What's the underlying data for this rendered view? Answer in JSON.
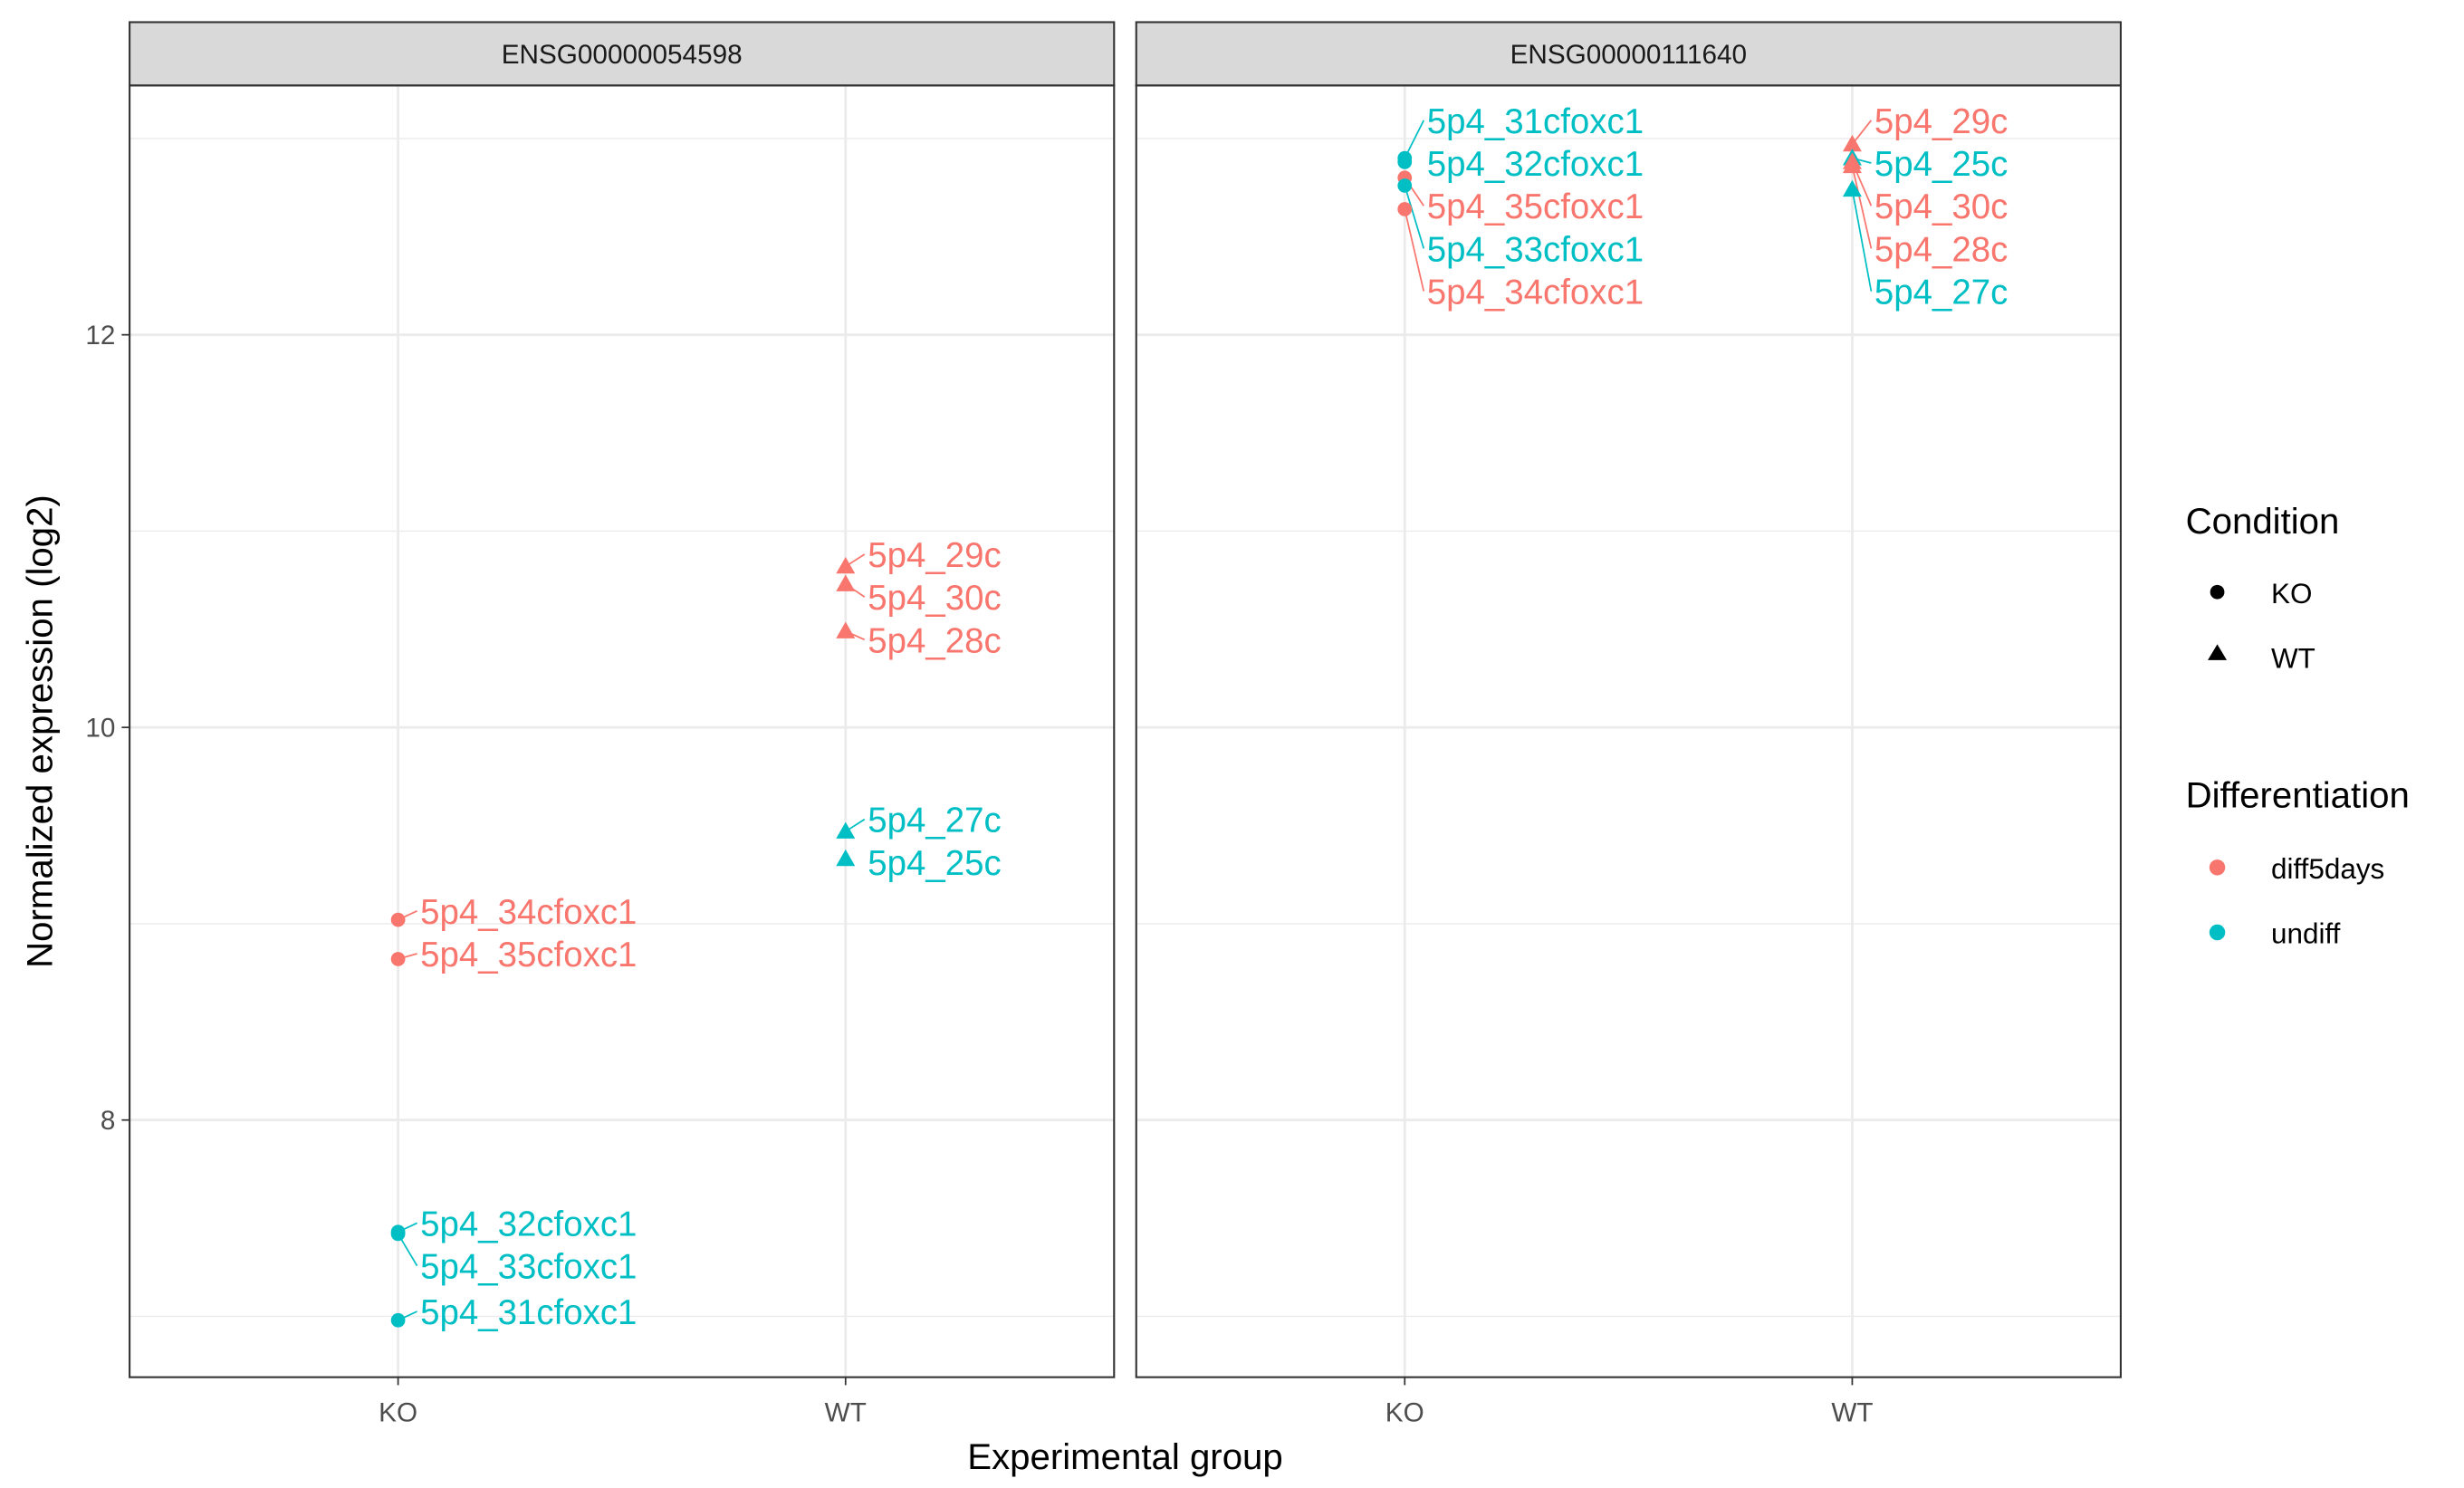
{
  "chart_data": {
    "type": "scatter",
    "xlabel": "Experimental group",
    "ylabel": "Normalized expression (log2)",
    "x_categories": [
      "KO",
      "WT"
    ],
    "ylim": [
      6.69,
      13.27
    ],
    "y_ticks": [
      8,
      10,
      12
    ],
    "grid": true,
    "legend_placement": "right",
    "legends": [
      {
        "title": "Condition",
        "entries": [
          {
            "label": "KO",
            "shape": "circle"
          },
          {
            "label": "WT",
            "shape": "triangle"
          }
        ]
      },
      {
        "title": "Differentiation",
        "entries": [
          {
            "label": "diff5days",
            "color": "#F8766D"
          },
          {
            "label": "undiff",
            "color": "#00BFC4"
          }
        ]
      }
    ],
    "facets": [
      {
        "title": "ENSG00000054598",
        "points": [
          {
            "group": "KO",
            "diff": "diff5days",
            "label": "5p4_34cfoxc1",
            "y": 9.02
          },
          {
            "group": "KO",
            "diff": "diff5days",
            "label": "5p4_35cfoxc1",
            "y": 8.82
          },
          {
            "group": "KO",
            "diff": "undiff",
            "label": "5p4_32cfoxc1",
            "y": 7.43
          },
          {
            "group": "KO",
            "diff": "undiff",
            "label": "5p4_33cfoxc1",
            "y": 7.42
          },
          {
            "group": "KO",
            "diff": "undiff",
            "label": "5p4_31cfoxc1",
            "y": 6.98
          },
          {
            "group": "WT",
            "diff": "diff5days",
            "label": "5p4_29c",
            "y": 10.82
          },
          {
            "group": "WT",
            "diff": "diff5days",
            "label": "5p4_30c",
            "y": 10.73
          },
          {
            "group": "WT",
            "diff": "diff5days",
            "label": "5p4_28c",
            "y": 10.49
          },
          {
            "group": "WT",
            "diff": "undiff",
            "label": "5p4_27c",
            "y": 9.47
          },
          {
            "group": "WT",
            "diff": "undiff",
            "label": "5p4_25c",
            "y": 9.33
          }
        ]
      },
      {
        "title": "ENSG00000111640",
        "points": [
          {
            "group": "KO",
            "diff": "undiff",
            "label": "5p4_31cfoxc1",
            "y": 12.9
          },
          {
            "group": "KO",
            "diff": "undiff",
            "label": "5p4_32cfoxc1",
            "y": 12.88
          },
          {
            "group": "KO",
            "diff": "undiff",
            "label": "5p4_33cfoxc1",
            "y": 12.76
          },
          {
            "group": "KO",
            "diff": "diff5days",
            "label": "5p4_35cfoxc1",
            "y": 12.8
          },
          {
            "group": "KO",
            "diff": "diff5days",
            "label": "5p4_34cfoxc1",
            "y": 12.64
          },
          {
            "group": "WT",
            "diff": "diff5days",
            "label": "5p4_29c",
            "y": 12.97
          },
          {
            "group": "WT",
            "diff": "diff5days",
            "label": "5p4_30c",
            "y": 12.88
          },
          {
            "group": "WT",
            "diff": "diff5days",
            "label": "5p4_28c",
            "y": 12.86
          },
          {
            "group": "WT",
            "diff": "undiff",
            "label": "5p4_25c",
            "y": 12.9
          },
          {
            "group": "WT",
            "diff": "undiff",
            "label": "5p4_27c",
            "y": 12.74
          }
        ]
      }
    ]
  }
}
